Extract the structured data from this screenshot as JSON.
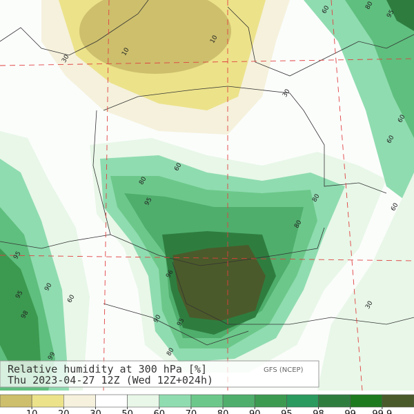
{
  "title": "Relative humidity at 300 hPa [%]",
  "subtitle": "Thu 2023-04-27 12Z (Wed 12Z+024h)",
  "source": "GFS (NCEP)",
  "contour_labels": [
    "10",
    "10",
    "30",
    "30",
    "60",
    "60",
    "60",
    "60",
    "60",
    "60",
    "80",
    "80",
    "80",
    "80",
    "80",
    "95",
    "95",
    "95",
    "95",
    "95",
    "96",
    "90",
    "90",
    "98",
    "99",
    "30"
  ],
  "colorbar": {
    "levels": [
      10,
      20,
      30,
      50,
      60,
      70,
      80,
      90,
      95,
      98,
      99,
      99.9
    ],
    "colors": [
      "#cdbf6c",
      "#ece28a",
      "#f5f1dc",
      "#ffffff",
      "#e8f7e8",
      "#8fdcb0",
      "#6cc88a",
      "#4fae6c",
      "#3c9a50",
      "#2a9a5e",
      "#2e7d3f",
      "#1e7a1e",
      "#4b5a2a"
    ]
  }
}
